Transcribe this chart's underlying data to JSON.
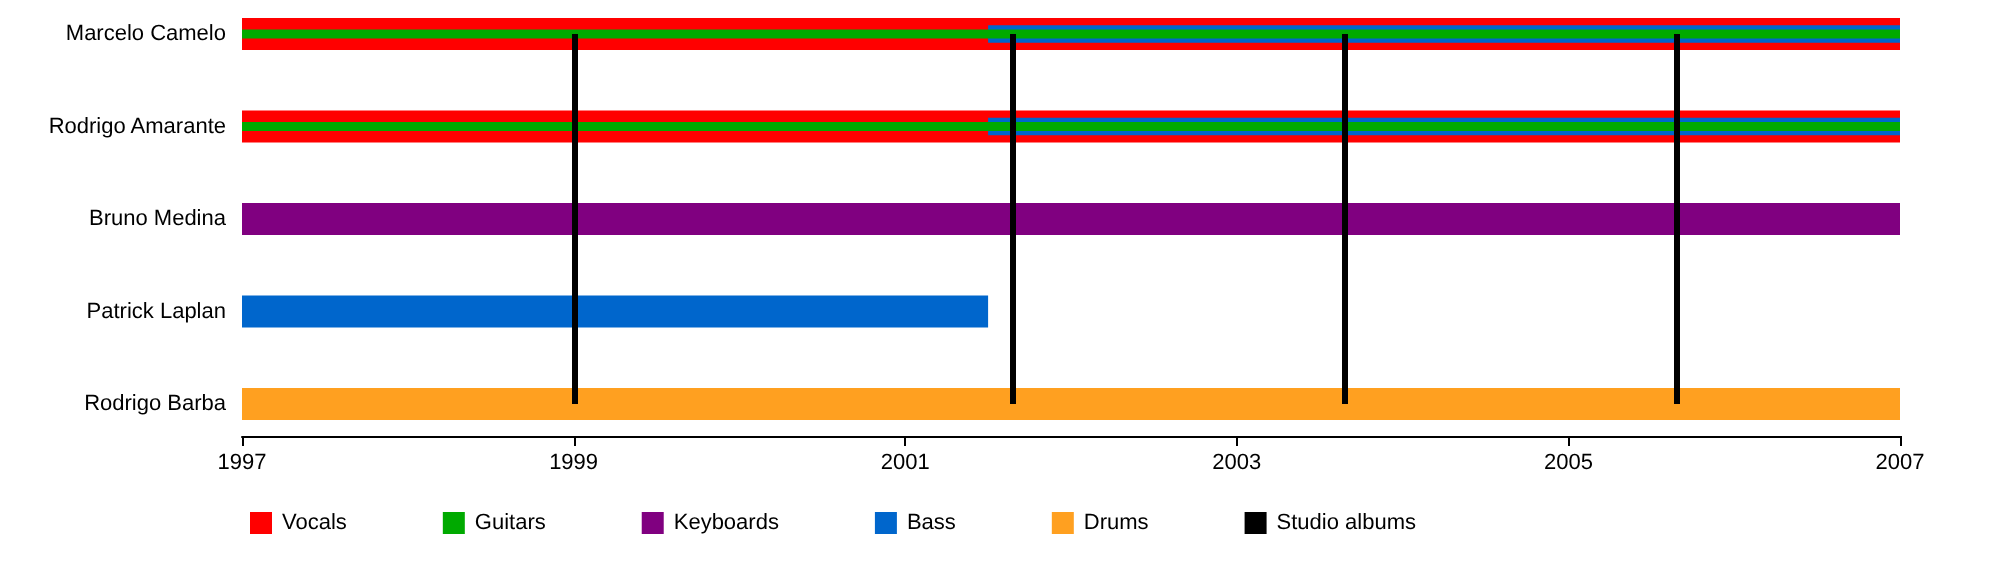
{
  "chart_data": {
    "type": "bar",
    "orientation": "horizontal",
    "categories": [
      "Marcelo Camelo",
      "Rodrigo Amarante",
      "Bruno Medina",
      "Patrick Laplan",
      "Rodrigo Barba"
    ],
    "series": [
      {
        "name": "Vocals",
        "color": "#ff0000",
        "base": [
          1997,
          1997,
          null,
          null,
          null
        ],
        "values": [
          10,
          10,
          null,
          null,
          null
        ]
      },
      {
        "name": "Guitars",
        "color": "#00aa00",
        "base": [
          1997,
          1997,
          null,
          null,
          null
        ],
        "values": [
          10,
          10,
          null,
          null,
          null
        ]
      },
      {
        "name": "Keyboards",
        "color": "#800080",
        "base": [
          null,
          null,
          1997,
          null,
          null
        ],
        "values": [
          null,
          null,
          10,
          null,
          null
        ]
      },
      {
        "name": "Bass",
        "color": "#0066cc",
        "base": [
          2001.5,
          2001.5,
          null,
          1997,
          null
        ],
        "values": [
          5.5,
          5.5,
          null,
          4.5,
          null
        ]
      },
      {
        "name": "Drums",
        "color": "#ffa020",
        "base": [
          null,
          null,
          null,
          null,
          1997
        ],
        "values": [
          null,
          null,
          null,
          null,
          10
        ]
      }
    ],
    "ref_lines": [
      {
        "axis": "x",
        "value": 1999,
        "label": "Studio albums",
        "color": "#000000"
      },
      {
        "axis": "x",
        "value": 2001.65,
        "color": "#000000"
      },
      {
        "axis": "x",
        "value": 2003.65,
        "color": "#000000"
      },
      {
        "axis": "x",
        "value": 2005.65,
        "color": "#000000"
      }
    ],
    "xlim": [
      1997,
      2007
    ],
    "xticks": [
      1997,
      1999,
      2001,
      2003,
      2005,
      2007
    ],
    "grid": false,
    "legend": "bottom left"
  }
}
